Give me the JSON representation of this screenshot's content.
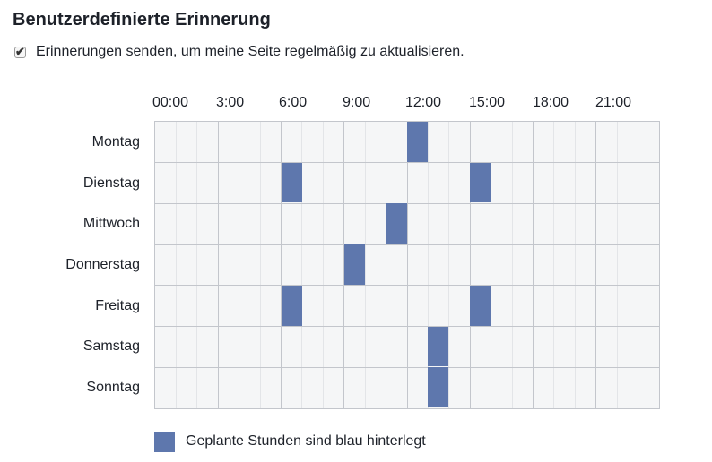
{
  "title": "Benutzerdefinierte Erinnerung",
  "checkbox": {
    "label": "Erinnerungen senden, um meine Seite regelmäßig zu aktualisieren.",
    "checked": true
  },
  "schedule": {
    "hour_labels": [
      "00:00",
      "3:00",
      "6:00",
      "9:00",
      "12:00",
      "15:00",
      "18:00",
      "21:00"
    ],
    "days": [
      {
        "name": "Montag",
        "scheduled_hours": [
          12
        ]
      },
      {
        "name": "Dienstag",
        "scheduled_hours": [
          6,
          15
        ]
      },
      {
        "name": "Mittwoch",
        "scheduled_hours": [
          11
        ]
      },
      {
        "name": "Donnerstag",
        "scheduled_hours": [
          9
        ]
      },
      {
        "name": "Freitag",
        "scheduled_hours": [
          6,
          15
        ]
      },
      {
        "name": "Samstag",
        "scheduled_hours": [
          13
        ]
      },
      {
        "name": "Sonntag",
        "scheduled_hours": [
          13
        ]
      }
    ],
    "hours_per_day": 24
  },
  "legend": {
    "label": "Geplante Stunden sind blau hinterlegt"
  },
  "colors": {
    "scheduled": "#5e77ad",
    "grid_background": "#f5f6f7",
    "grid_major_line": "#c3c6cc",
    "grid_minor_line": "#e3e5e8",
    "text": "#1d2129"
  }
}
